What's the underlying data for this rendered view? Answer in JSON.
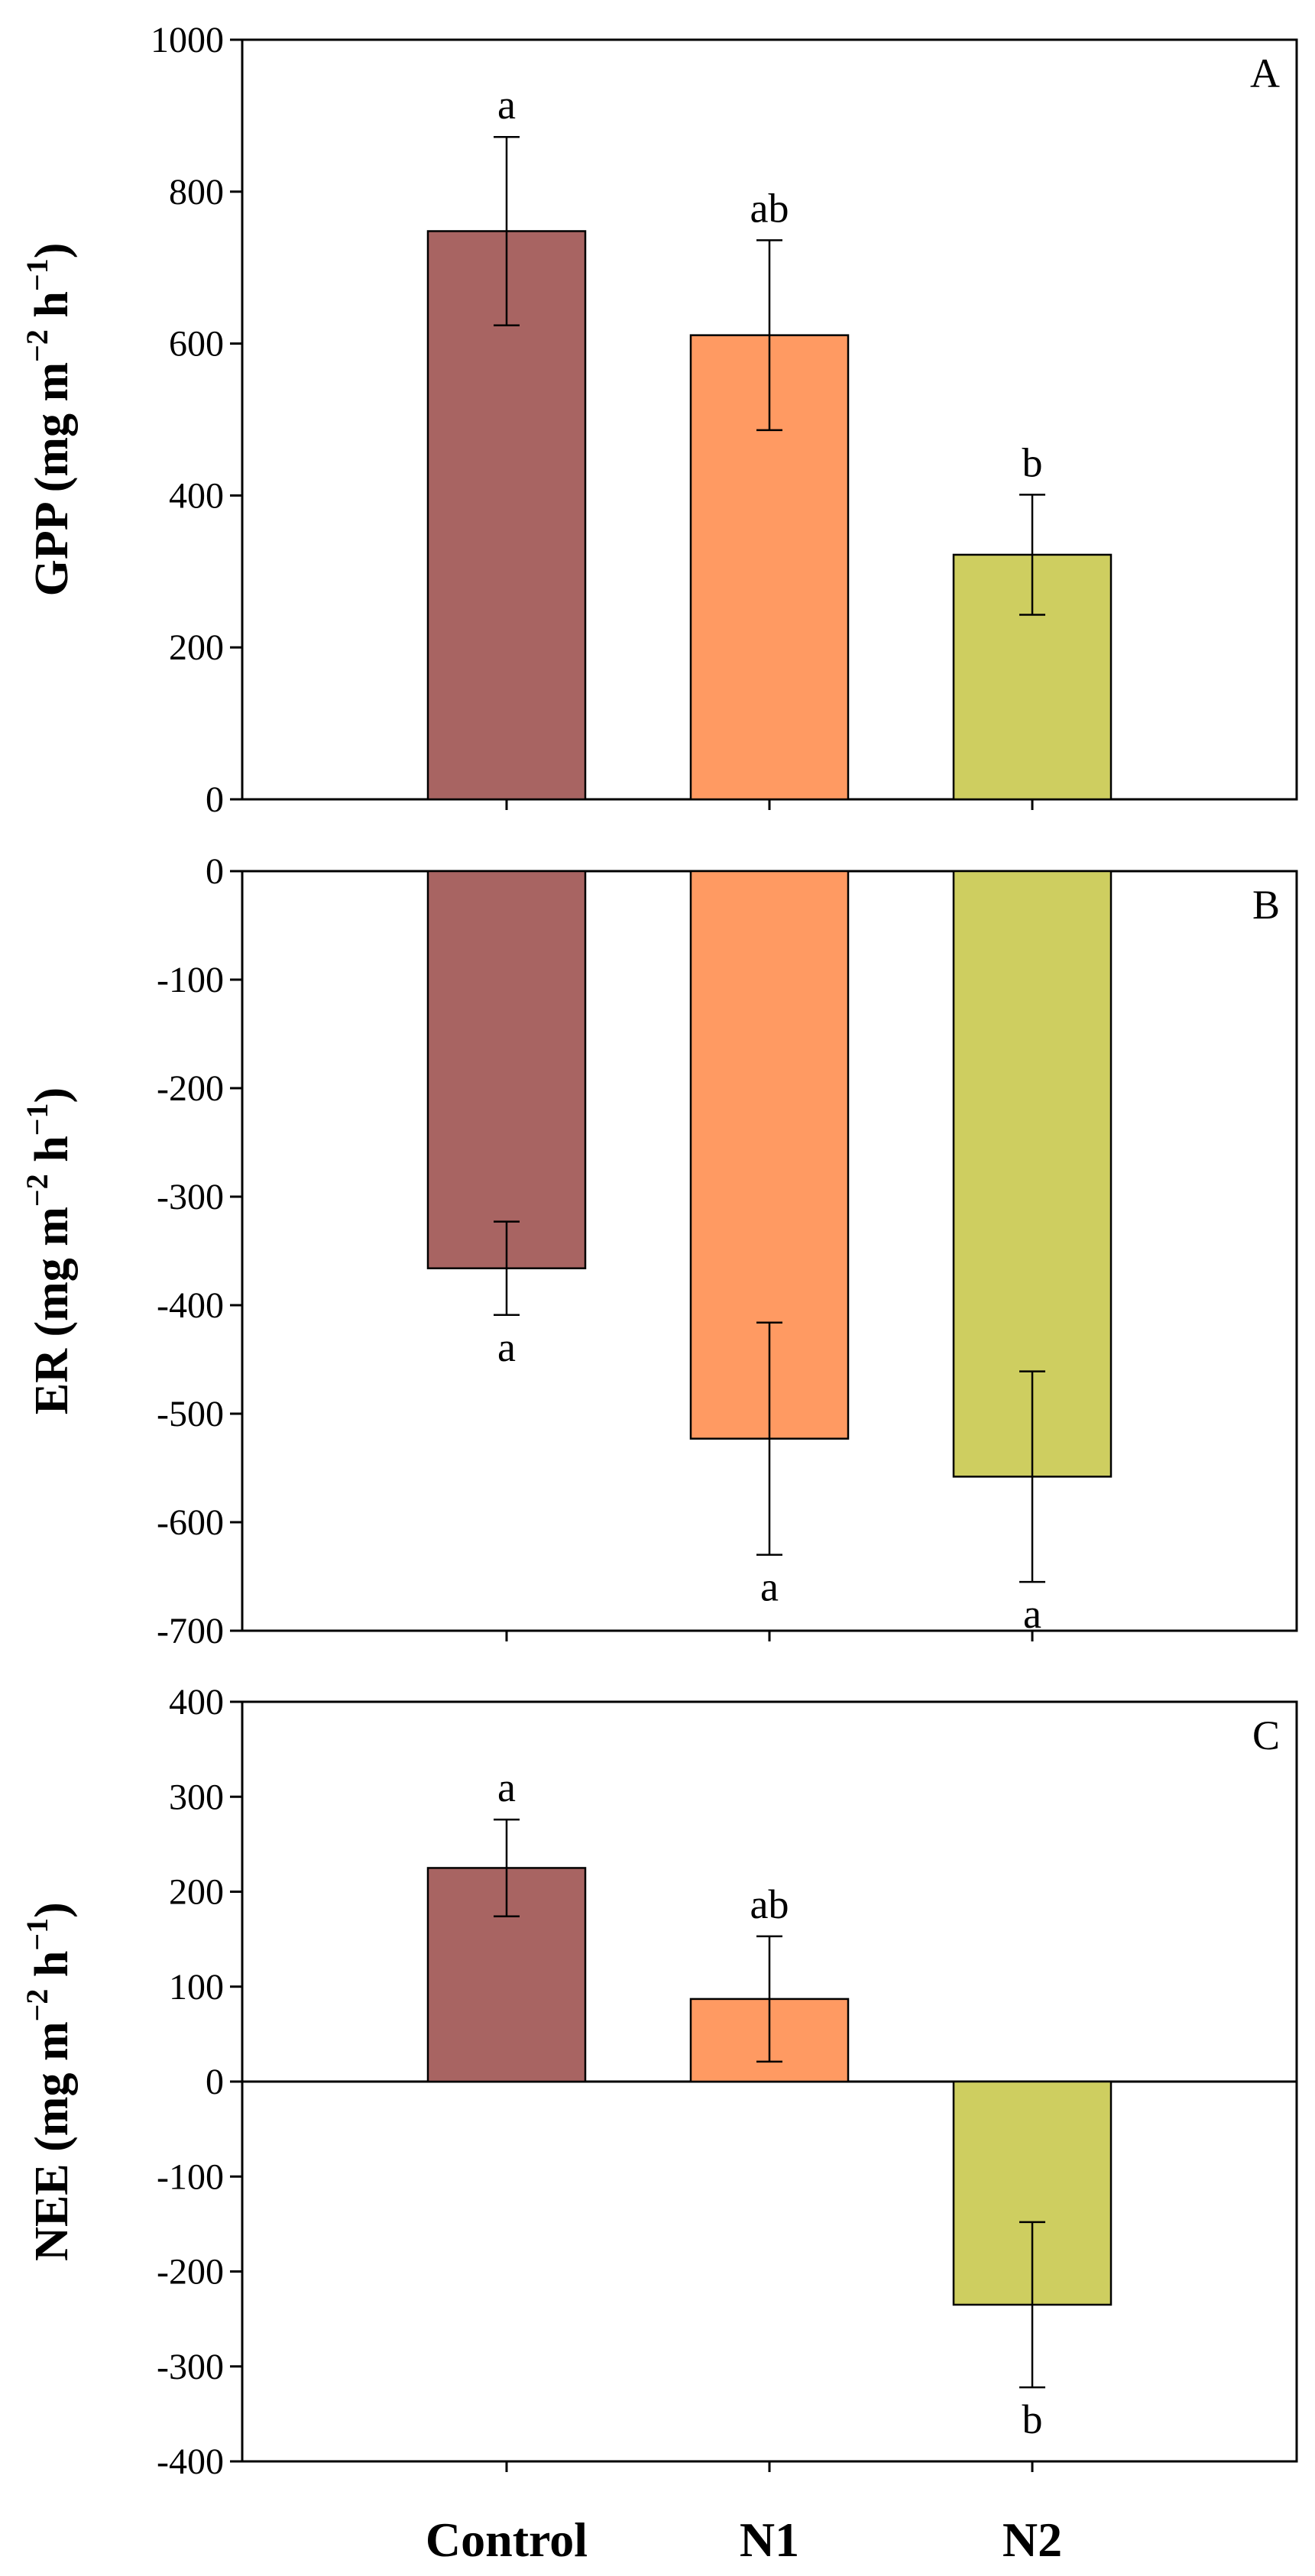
{
  "chart_data": [
    {
      "type": "bar",
      "panel": "A",
      "ylabel": "GPP (mg m",
      "ylabel_sup1": "−2",
      "ylabel_mid": " h",
      "ylabel_sup2": "−1",
      "ylabel_end": ")",
      "ylim": [
        0,
        1000
      ],
      "yticks": [
        0,
        200,
        400,
        600,
        800,
        1000
      ],
      "ytick_labels": [
        "0",
        "200",
        "400",
        "600",
        "800",
        "1000"
      ],
      "categories": [
        "Control",
        "N1",
        "N2"
      ],
      "values": [
        748,
        611,
        322
      ],
      "errors": [
        124,
        125,
        79
      ],
      "significance": [
        "a",
        "ab",
        "b"
      ],
      "colors": [
        "#a86462",
        "#ff9a62",
        "#cece60"
      ],
      "zero_line": false
    },
    {
      "type": "bar",
      "panel": "B",
      "ylabel": "ER (mg m",
      "ylabel_sup1": "−2",
      "ylabel_mid": " h",
      "ylabel_sup2": "−1",
      "ylabel_end": ")",
      "ylim": [
        -700,
        0
      ],
      "yticks": [
        -700,
        -600,
        -500,
        -400,
        -300,
        -200,
        -100,
        0
      ],
      "ytick_labels": [
        "-700",
        "-600",
        "-500",
        "-400",
        "-300",
        "-200",
        "-100",
        "0"
      ],
      "categories": [
        "Control",
        "N1",
        "N2"
      ],
      "values": [
        -366,
        -523,
        -558
      ],
      "errors": [
        43,
        107,
        97
      ],
      "significance": [
        "a",
        "a",
        "a"
      ],
      "colors": [
        "#a86462",
        "#ff9a62",
        "#cece60"
      ],
      "zero_line": false
    },
    {
      "type": "bar",
      "panel": "C",
      "ylabel": "NEE (mg m",
      "ylabel_sup1": "−2",
      "ylabel_mid": " h",
      "ylabel_sup2": "−1",
      "ylabel_end": ")",
      "ylim": [
        -400,
        400
      ],
      "yticks": [
        -400,
        -300,
        -200,
        -100,
        0,
        100,
        200,
        300,
        400
      ],
      "ytick_labels": [
        "-400",
        "-300",
        "-200",
        "-100",
        "0",
        "100",
        "200",
        "300",
        "400"
      ],
      "categories": [
        "Control",
        "N1",
        "N2"
      ],
      "values": [
        225,
        87,
        -235
      ],
      "errors": [
        51,
        66,
        87
      ],
      "significance": [
        "a",
        "ab",
        "b"
      ],
      "colors": [
        "#a86462",
        "#ff9a62",
        "#cece60"
      ],
      "zero_line": true
    }
  ],
  "x_categories": [
    "Control",
    "N1",
    "N2"
  ]
}
